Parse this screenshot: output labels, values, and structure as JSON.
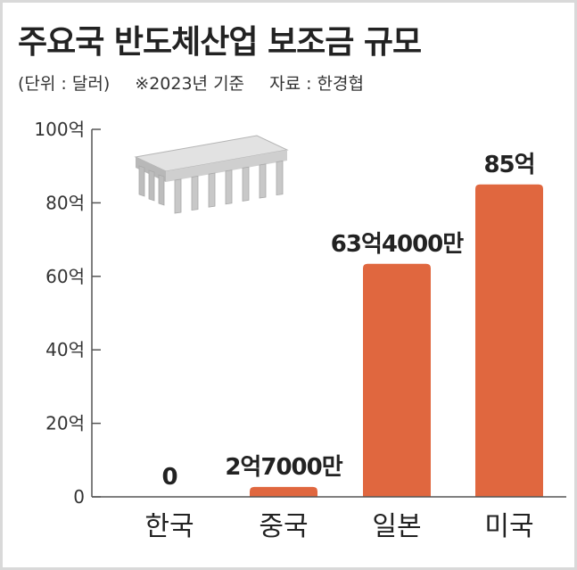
{
  "header": {
    "title": "주요국 반도체산업 보조금 규모",
    "unit_note": "(단위 : 달러)",
    "base_note": "※2023년 기준",
    "source_note": "자료 : 한경협"
  },
  "colors": {
    "bar": "#e0673f",
    "axis": "#555555",
    "grid": "#cccccc",
    "chip": "#c8c8c8"
  },
  "icon": "semiconductor-chip-icon",
  "chart_data": {
    "type": "bar",
    "title": "주요국 반도체산업 보조금 규모",
    "categories": [
      "한국",
      "중국",
      "일본",
      "미국"
    ],
    "values": [
      0,
      2.7,
      63.4,
      85
    ],
    "value_unit": "억 달러",
    "data_labels": [
      "0",
      "2억7000만",
      "63억4000만",
      "85억"
    ],
    "yticks": [
      "0",
      "20억",
      "40억",
      "60억",
      "80억",
      "100억"
    ],
    "ylim": [
      0,
      100
    ],
    "xlabel": "",
    "ylabel": "",
    "grid": false,
    "legend": "none"
  }
}
